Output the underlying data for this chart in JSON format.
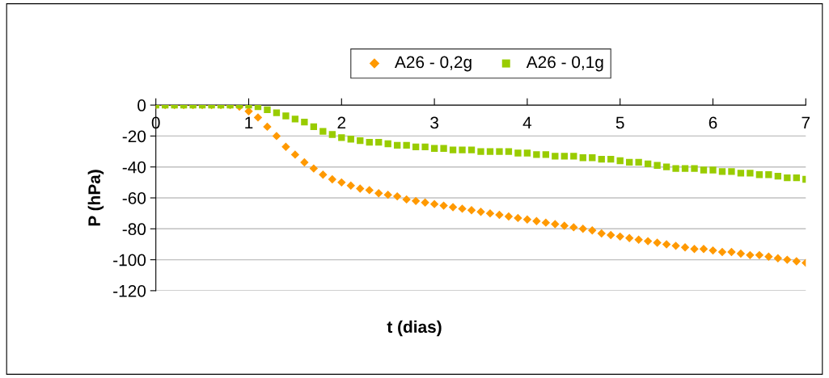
{
  "chart_data": {
    "type": "scatter",
    "xlabel": "t (dias)",
    "ylabel": "P (hPa)",
    "x": [
      0,
      0.1,
      0.2,
      0.3,
      0.4,
      0.5,
      0.6,
      0.7,
      0.8,
      0.9,
      1.0,
      1.1,
      1.2,
      1.3,
      1.4,
      1.5,
      1.6,
      1.7,
      1.8,
      1.9,
      2.0,
      2.1,
      2.2,
      2.3,
      2.4,
      2.5,
      2.6,
      2.7,
      2.8,
      2.9,
      3.0,
      3.1,
      3.2,
      3.3,
      3.4,
      3.5,
      3.6,
      3.7,
      3.8,
      3.9,
      4.0,
      4.1,
      4.2,
      4.3,
      4.4,
      4.5,
      4.6,
      4.7,
      4.8,
      4.9,
      5.0,
      5.1,
      5.2,
      5.3,
      5.4,
      5.5,
      5.6,
      5.7,
      5.8,
      5.9,
      6.0,
      6.1,
      6.2,
      6.3,
      6.4,
      6.5,
      6.6,
      6.7,
      6.8,
      6.9,
      7.0
    ],
    "series": [
      {
        "name": "A26 - 0,2g",
        "color": "#ff9900",
        "marker": "diamond",
        "values": [
          0,
          0,
          0,
          0,
          0,
          0,
          0,
          0,
          0,
          -1,
          -4,
          -8,
          -14,
          -20,
          -27,
          -32,
          -37,
          -41,
          -45,
          -48,
          -50,
          -52,
          -54,
          -55,
          -57,
          -58,
          -59,
          -61,
          -62,
          -63,
          -64,
          -65,
          -66,
          -67,
          -68,
          -69,
          -70,
          -71,
          -72,
          -73,
          -74,
          -75,
          -76,
          -77,
          -78,
          -79,
          -80,
          -81,
          -83,
          -84,
          -85,
          -86,
          -87,
          -88,
          -89,
          -90,
          -91,
          -92,
          -93,
          -93,
          -94,
          -95,
          -95,
          -96,
          -97,
          -97,
          -98,
          -99,
          -100,
          -101,
          -102
        ]
      },
      {
        "name": "A26 - 0,1g",
        "color": "#99cc00",
        "marker": "square",
        "values": [
          0,
          0,
          0,
          0,
          0,
          0,
          0,
          0,
          0,
          0,
          0,
          -1,
          -3,
          -5,
          -7,
          -9,
          -11,
          -14,
          -17,
          -19,
          -21,
          -22,
          -23,
          -24,
          -24,
          -25,
          -26,
          -26,
          -27,
          -27,
          -28,
          -28,
          -29,
          -29,
          -29,
          -30,
          -30,
          -30,
          -30,
          -31,
          -31,
          -32,
          -32,
          -33,
          -33,
          -33,
          -34,
          -34,
          -35,
          -35,
          -36,
          -37,
          -37,
          -38,
          -39,
          -40,
          -41,
          -41,
          -41,
          -42,
          -42,
          -43,
          -43,
          -44,
          -44,
          -45,
          -45,
          -46,
          -47,
          -47,
          -48
        ]
      }
    ],
    "xlim": [
      0,
      7
    ],
    "xticks": [
      0,
      1,
      2,
      3,
      4,
      5,
      6,
      7
    ],
    "ylim": [
      -120,
      0
    ],
    "yticks": [
      -120,
      -100,
      -80,
      -60,
      -40,
      -20,
      0
    ],
    "grid": "y",
    "legend": "top"
  }
}
